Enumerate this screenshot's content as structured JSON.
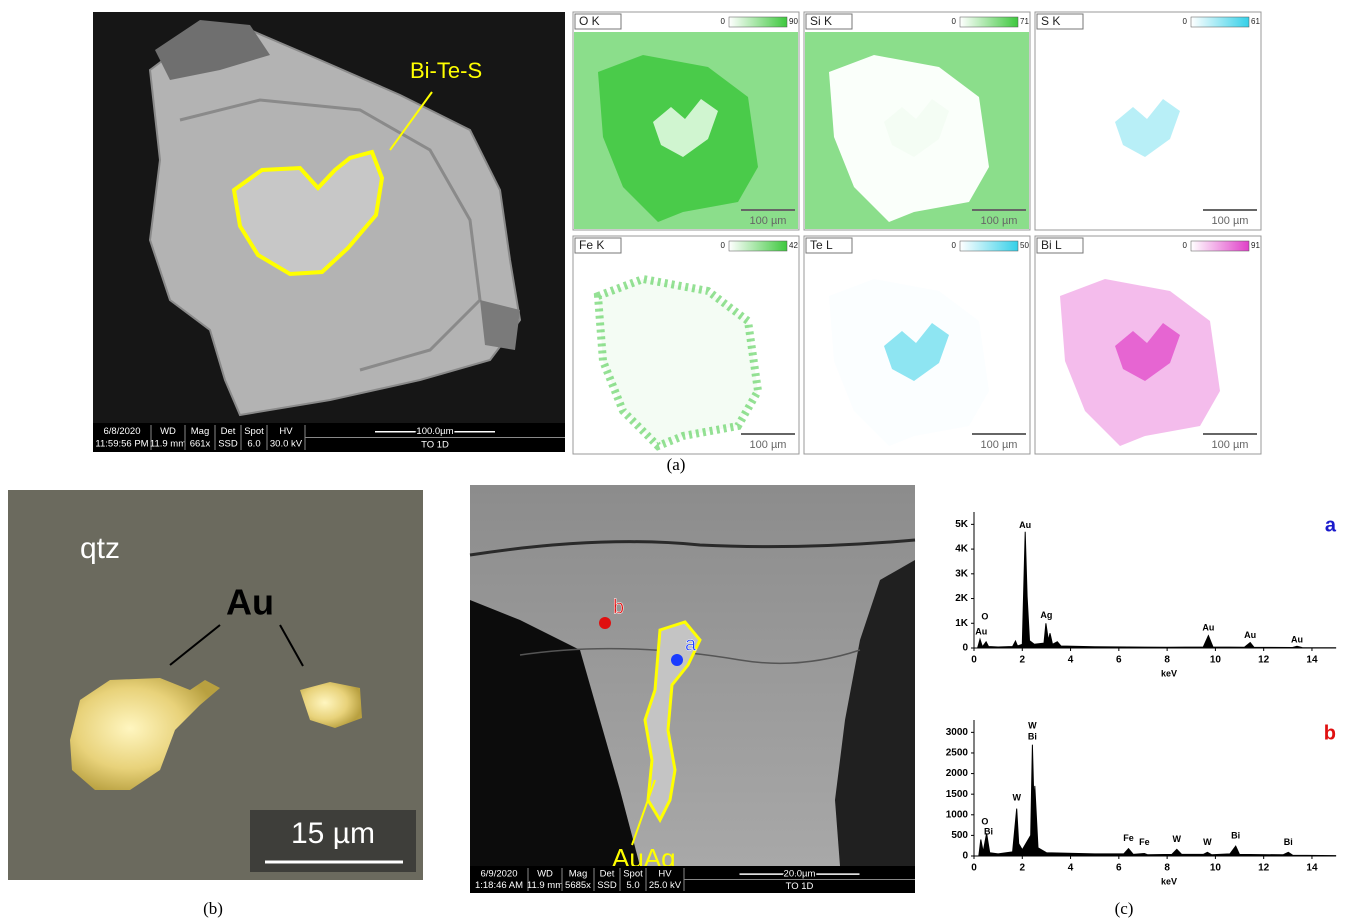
{
  "panel_a": {
    "label": "Bi-Te-S",
    "info_bar": {
      "date": "6/8/2020",
      "time": "11:59:56 PM",
      "cells": [
        {
          "label": "WD",
          "value": "11.9 mm"
        },
        {
          "label": "Mag",
          "value": "661x"
        },
        {
          "label": "Det",
          "value": "SSD"
        },
        {
          "label": "Spot",
          "value": "6.0"
        },
        {
          "label": "HV",
          "value": "30.0 kV"
        }
      ],
      "scale": "100.0µm",
      "sample": "TO 1D"
    },
    "maps": [
      {
        "element": "O K",
        "scale_min": 0,
        "scale_max": 90,
        "color": "#3ec83e",
        "scale_bar": "100 µm"
      },
      {
        "element": "Si K",
        "scale_min": 0,
        "scale_max": 71,
        "color": "#3ec83e",
        "scale_bar": "100 µm"
      },
      {
        "element": "S K",
        "scale_min": 0,
        "scale_max": 61,
        "color": "#35d0e8",
        "scale_bar": "100 µm"
      },
      {
        "element": "Fe K",
        "scale_min": 0,
        "scale_max": 42,
        "color": "#3ec83e",
        "scale_bar": "100 µm"
      },
      {
        "element": "Te L",
        "scale_min": 0,
        "scale_max": 50,
        "color": "#35d0e8",
        "scale_bar": "100 µm"
      },
      {
        "element": "Bi L",
        "scale_min": 0,
        "scale_max": 91,
        "color": "#e040c8",
        "scale_bar": "100 µm"
      }
    ],
    "caption": "(a)"
  },
  "panel_b": {
    "mineral": "qtz",
    "grain": "Au",
    "scale_bar": "15 µm",
    "caption": "(b)"
  },
  "panel_c": {
    "label": "AuAg",
    "points": [
      {
        "label": "a",
        "color": "#1a3cff"
      },
      {
        "label": "b",
        "color": "#e01010"
      }
    ],
    "info_bar": {
      "date": "6/9/2020",
      "time": "1:18:46 AM",
      "cells": [
        {
          "label": "WD",
          "value": "11.9 mm"
        },
        {
          "label": "Mag",
          "value": "5685x"
        },
        {
          "label": "Det",
          "value": "SSD"
        },
        {
          "label": "Spot",
          "value": "5.0"
        },
        {
          "label": "HV",
          "value": "25.0 kV"
        }
      ],
      "scale": "20.0µm",
      "sample": "TO 1D"
    },
    "caption": "(c)"
  },
  "chart_data": [
    {
      "type": "line",
      "label": "a",
      "label_color": "#1a1acc",
      "color": "#000000",
      "xlabel": "keV",
      "x": [
        0,
        0.15,
        0.25,
        0.35,
        0.5,
        0.6,
        1.0,
        1.6,
        1.72,
        1.8,
        2.0,
        2.12,
        2.2,
        2.3,
        2.5,
        2.9,
        2.98,
        3.08,
        3.15,
        3.25,
        3.45,
        3.6,
        5,
        8,
        9.5,
        9.71,
        9.9,
        11.2,
        11.44,
        11.6,
        13.2,
        13.38,
        13.6,
        15
      ],
      "values": [
        0,
        0,
        350,
        50,
        250,
        60,
        40,
        60,
        280,
        80,
        150,
        4700,
        2100,
        300,
        150,
        200,
        1000,
        300,
        600,
        150,
        250,
        80,
        50,
        30,
        40,
        500,
        40,
        30,
        220,
        30,
        20,
        70,
        15,
        10
      ],
      "xlim": [
        0,
        15
      ],
      "xticks": [
        0,
        2,
        4,
        6,
        8,
        10,
        12,
        14
      ],
      "ylim": [
        0,
        5500
      ],
      "yticks": [
        0,
        {
          "value": 1000,
          "label": "1K"
        },
        {
          "value": 2000,
          "label": "2K"
        },
        {
          "value": 3000,
          "label": "3K"
        },
        {
          "value": 4000,
          "label": "4K"
        },
        {
          "value": 5000,
          "label": "5K"
        }
      ],
      "annotations": [
        {
          "text": "Au",
          "x": 2.12,
          "y": 4950
        },
        {
          "text": "Ag",
          "x": 3.0,
          "y": 1300
        },
        {
          "text": "O",
          "x": 0.45,
          "y": 1250
        },
        {
          "text": "Au",
          "x": 0.3,
          "y": 650
        },
        {
          "text": "Au",
          "x": 9.71,
          "y": 800
        },
        {
          "text": "Au",
          "x": 11.44,
          "y": 500
        },
        {
          "text": "Au",
          "x": 13.38,
          "y": 320
        }
      ]
    },
    {
      "type": "line",
      "label": "b",
      "label_color": "#e01010",
      "color": "#000000",
      "xlabel": "keV",
      "x": [
        0,
        0.2,
        0.28,
        0.38,
        0.52,
        0.65,
        1.0,
        1.6,
        1.77,
        1.85,
        2.0,
        2.35,
        2.42,
        2.48,
        2.52,
        2.65,
        3.0,
        5,
        6.2,
        6.4,
        6.6,
        7.06,
        7.2,
        8.2,
        8.4,
        8.6,
        9.5,
        9.67,
        9.85,
        10.6,
        10.84,
        11.0,
        12.8,
        13.02,
        13.2,
        15
      ],
      "values": [
        0,
        0,
        400,
        100,
        550,
        80,
        50,
        100,
        1150,
        300,
        150,
        500,
        2700,
        1300,
        1700,
        200,
        80,
        50,
        50,
        180,
        40,
        60,
        30,
        40,
        160,
        40,
        40,
        90,
        30,
        50,
        240,
        40,
        30,
        90,
        20,
        10
      ],
      "xlim": [
        0,
        15
      ],
      "xticks": [
        0,
        2,
        4,
        6,
        8,
        10,
        12,
        14
      ],
      "ylim": [
        0,
        3300
      ],
      "yticks": [
        0,
        500,
        1000,
        1500,
        2000,
        2500,
        3000
      ],
      "annotations": [
        {
          "text": "W",
          "x": 2.42,
          "y": 3150
        },
        {
          "text": "Bi",
          "x": 2.42,
          "y": 2880
        },
        {
          "text": "W",
          "x": 1.77,
          "y": 1400
        },
        {
          "text": "O",
          "x": 0.45,
          "y": 820
        },
        {
          "text": "Bi",
          "x": 0.6,
          "y": 580
        },
        {
          "text": "Fe",
          "x": 6.4,
          "y": 420
        },
        {
          "text": "Fe",
          "x": 7.06,
          "y": 330
        },
        {
          "text": "W",
          "x": 8.4,
          "y": 400
        },
        {
          "text": "W",
          "x": 9.67,
          "y": 330
        },
        {
          "text": "Bi",
          "x": 10.84,
          "y": 480
        },
        {
          "text": "Bi",
          "x": 13.02,
          "y": 330
        }
      ]
    }
  ]
}
